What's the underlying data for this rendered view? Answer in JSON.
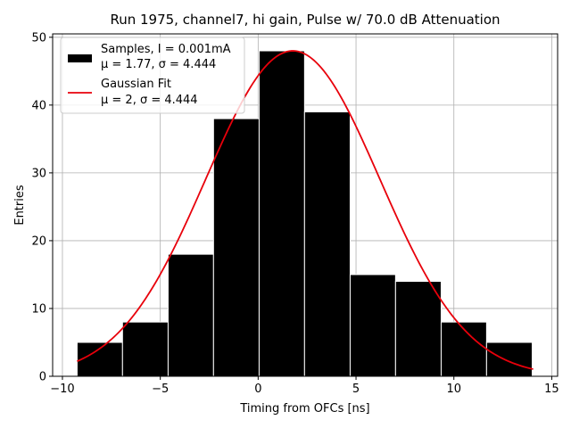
{
  "chart_data": {
    "type": "bar",
    "title": "Run 1975, channel7, hi gain, Pulse w/ 70.0 dB Attenuation",
    "xlabel": "Timing from OFCs [ns]",
    "ylabel": "Entries",
    "xlim": [
      -10.5,
      15.3
    ],
    "ylim": [
      0,
      50.5
    ],
    "grid": true,
    "x_ticks": [
      -10,
      -5,
      0,
      5,
      10,
      15
    ],
    "x_tick_labels": [
      "−10",
      "−5",
      "0",
      "5",
      "10",
      "15"
    ],
    "y_ticks": [
      0,
      10,
      20,
      30,
      40,
      50
    ],
    "y_tick_labels": [
      "0",
      "10",
      "20",
      "30",
      "40",
      "50"
    ],
    "histogram": {
      "name": "Samples, I = 0.001mA",
      "stats": "μ = 1.77, σ = 4.444",
      "color": "#000000",
      "edge_color": "#ffffff",
      "bin_edges": [
        -9.25,
        -6.93,
        -4.6,
        -2.28,
        0.05,
        2.37,
        4.7,
        7.02,
        9.35,
        11.67,
        14.0
      ],
      "counts": [
        5,
        8,
        18,
        38,
        48,
        39,
        15,
        14,
        8,
        5
      ]
    },
    "fit": {
      "name": "Gaussian Fit",
      "stats": "μ = 2, σ = 4.444",
      "color": "#e8000b",
      "mu": 1.77,
      "sigma": 4.444,
      "amplitude": 48,
      "x_range": [
        -9.25,
        14.05
      ]
    },
    "legend": {
      "placement": "top-left"
    }
  }
}
